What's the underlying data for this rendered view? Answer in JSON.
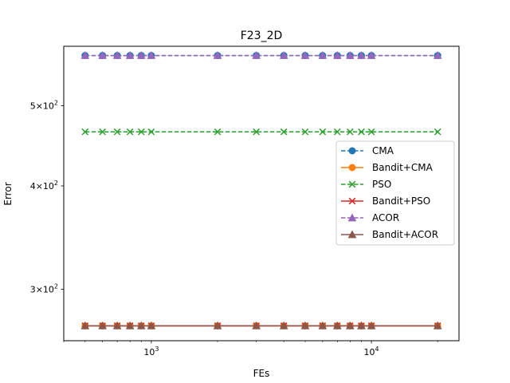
{
  "chart_data": {
    "type": "line",
    "title": "F23_2D",
    "xlabel": "FEs",
    "ylabel": "Error",
    "xscale": "log",
    "yscale": "log",
    "xlim": [
      400,
      25000
    ],
    "ylim": [
      260,
      590
    ],
    "grid": false,
    "legend_position": "center-right",
    "x_ticks": [
      {
        "value": 1000,
        "base": "10",
        "exp": "3"
      },
      {
        "value": 10000,
        "base": "10",
        "exp": "4"
      }
    ],
    "y_ticks": [
      {
        "value": 300,
        "mant": "3",
        "base": "10",
        "exp": "2"
      },
      {
        "value": 400,
        "mant": "4",
        "base": "10",
        "exp": "2"
      },
      {
        "value": 500,
        "mant": "5",
        "base": "10",
        "exp": "2"
      }
    ],
    "x": [
      500,
      600,
      700,
      800,
      900,
      1000,
      2000,
      3000,
      4000,
      5000,
      6000,
      7000,
      8000,
      9000,
      10000,
      20000
    ],
    "series": [
      {
        "name": "CMA",
        "color": "#1f77b4",
        "dash": "dashed",
        "marker": "circle",
        "values": [
          575,
          575,
          575,
          575,
          575,
          575,
          575,
          575,
          575,
          575,
          575,
          575,
          575,
          575,
          575,
          575
        ]
      },
      {
        "name": "Bandit+CMA",
        "color": "#ff7f0e",
        "dash": "solid",
        "marker": "circle",
        "values": [
          271,
          271,
          271,
          271,
          271,
          271,
          271,
          271,
          271,
          271,
          271,
          271,
          271,
          271,
          271,
          271
        ]
      },
      {
        "name": "PSO",
        "color": "#2ca02c",
        "dash": "dashed",
        "marker": "x",
        "values": [
          465,
          465,
          465,
          465,
          465,
          465,
          465,
          465,
          465,
          465,
          465,
          465,
          465,
          465,
          465,
          465
        ]
      },
      {
        "name": "Bandit+PSO",
        "color": "#d62728",
        "dash": "solid",
        "marker": "x",
        "values": [
          271,
          271,
          271,
          271,
          271,
          271,
          271,
          271,
          271,
          271,
          271,
          271,
          271,
          271,
          271,
          271
        ]
      },
      {
        "name": "ACOR",
        "color": "#9467bd",
        "dash": "dashed",
        "marker": "triangle",
        "values": [
          575,
          575,
          575,
          575,
          575,
          575,
          575,
          575,
          575,
          575,
          575,
          575,
          575,
          575,
          575,
          575
        ]
      },
      {
        "name": "Bandit+ACOR",
        "color": "#8c564b",
        "dash": "solid",
        "marker": "triangle",
        "values": [
          271,
          271,
          271,
          271,
          271,
          271,
          271,
          271,
          271,
          271,
          271,
          271,
          271,
          271,
          271,
          271
        ]
      }
    ]
  }
}
